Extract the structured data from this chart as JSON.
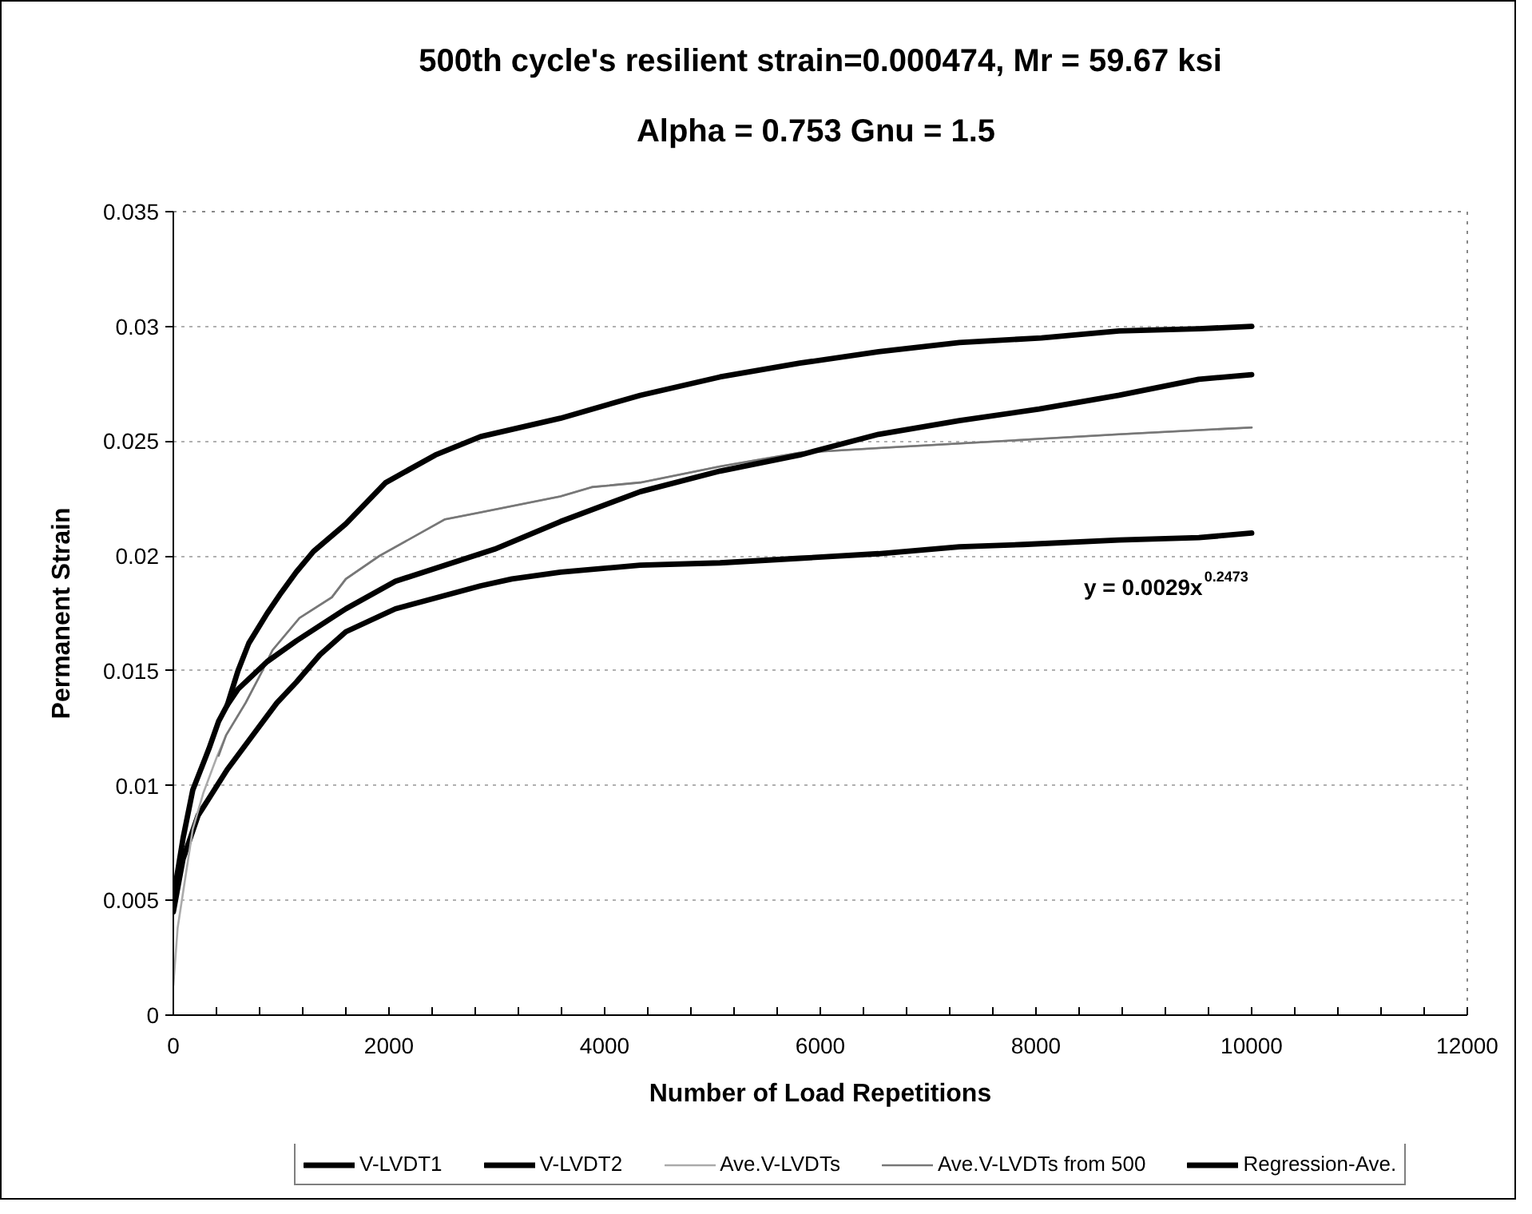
{
  "chart_data": {
    "type": "line",
    "title": "500th cycle's resilient strain=0.000474, Mr = 59.67 ksi",
    "subtitle": "Alpha = 0.753  Gnu = 1.5",
    "xlabel": "Number of Load Repetitions",
    "ylabel": "Permanent Strain",
    "xlim": [
      0,
      12000
    ],
    "ylim": [
      0,
      0.035
    ],
    "xticks": [
      0,
      {
        "value": 400,
        "label": null
      },
      {
        "value": 800,
        "label": null
      },
      {
        "value": 1200,
        "label": null
      },
      {
        "value": 1600,
        "label": null
      },
      2000,
      {
        "value": 2400,
        "label": null
      },
      {
        "value": 2800,
        "label": null
      },
      {
        "value": 3200,
        "label": null
      },
      {
        "value": 3600,
        "label": null
      },
      4000,
      {
        "value": 4400,
        "label": null
      },
      {
        "value": 4800,
        "label": null
      },
      {
        "value": 5200,
        "label": null
      },
      {
        "value": 5600,
        "label": null
      },
      6000,
      {
        "value": 6400,
        "label": null
      },
      {
        "value": 6800,
        "label": null
      },
      {
        "value": 7200,
        "label": null
      },
      {
        "value": 7600,
        "label": null
      },
      8000,
      {
        "value": 8400,
        "label": null
      },
      {
        "value": 8800,
        "label": null
      },
      {
        "value": 9200,
        "label": null
      },
      {
        "value": 9600,
        "label": null
      },
      10000,
      {
        "value": 10400,
        "label": null
      },
      {
        "value": 10800,
        "label": null
      },
      {
        "value": 11200,
        "label": null
      },
      {
        "value": 11600,
        "label": null
      },
      12000
    ],
    "yticks": [
      0,
      0.005,
      0.01,
      0.015,
      0.02,
      0.025,
      0.03,
      0.035
    ],
    "grid": "y",
    "legend": "bottom",
    "marker": "none",
    "annotations": [
      "y = 0.0029x$^{0.2473}$"
    ],
    "series": [
      {
        "name": "V-LVDT1",
        "color": "#000000",
        "x": [
          0,
          90,
          180,
          330,
          420,
          500,
          600,
          700,
          870,
          1000,
          1140,
          1300,
          1600,
          1970,
          2430,
          2850,
          3590,
          4330,
          5070,
          5810,
          6540,
          7290,
          8050,
          8770,
          9510,
          10000
        ],
        "values": [
          0.0051,
          0.0077,
          0.0098,
          0.0116,
          0.0128,
          0.0135,
          0.015,
          0.0162,
          0.0175,
          0.0184,
          0.0193,
          0.0202,
          0.0214,
          0.0232,
          0.0244,
          0.0252,
          0.026,
          0.027,
          0.0278,
          0.0284,
          0.0289,
          0.0293,
          0.0295,
          0.0298,
          0.0299,
          0.03
        ]
      },
      {
        "name": "V-LVDT2",
        "color": "#000000",
        "x": [
          0,
          90,
          230,
          500,
          770,
          960,
          1140,
          1360,
          1600,
          2060,
          2850,
          3140,
          3590,
          4330,
          5070,
          5810,
          6540,
          7290,
          7880,
          8770,
          9510,
          10000
        ],
        "values": [
          0.0045,
          0.0068,
          0.0087,
          0.0107,
          0.0124,
          0.0136,
          0.0145,
          0.0157,
          0.0167,
          0.0177,
          0.0187,
          0.019,
          0.0193,
          0.0196,
          0.0197,
          0.0199,
          0.0201,
          0.0204,
          0.0205,
          0.0207,
          0.0208,
          0.021
        ]
      },
      {
        "name": "Ave.V-LVDTs",
        "color": "#aaaaaa",
        "x": [
          0,
          40,
          180,
          280,
          400,
          490,
          670,
          815,
          920,
          1170,
          1470,
          1600,
          1910,
          2520,
          2850,
          3590,
          3880,
          4330,
          5070,
          5810,
          6540,
          7290,
          8030,
          8770,
          10000
        ],
        "values": [
          0.0013,
          0.0038,
          0.0081,
          0.0097,
          0.0112,
          0.0122,
          0.0136,
          0.0149,
          0.0159,
          0.0173,
          0.0182,
          0.019,
          0.02,
          0.0216,
          0.0219,
          0.0226,
          0.023,
          0.0232,
          0.0239,
          0.0245,
          0.0247,
          0.0249,
          0.0251,
          0.0253,
          0.0256
        ]
      },
      {
        "name": "Ave.V-LVDTs from 500",
        "color": "#777777",
        "x": [
          420,
          490,
          670,
          815,
          920,
          1170,
          1470,
          1600,
          1910,
          2520,
          2850,
          3590,
          3880,
          4330,
          5070,
          5810,
          6540,
          7290,
          8030,
          8770,
          10000
        ],
        "values": [
          0.0113,
          0.0122,
          0.0136,
          0.0149,
          0.0159,
          0.0173,
          0.0182,
          0.019,
          0.02,
          0.0216,
          0.0219,
          0.0226,
          0.023,
          0.0232,
          0.0239,
          0.0245,
          0.0247,
          0.0249,
          0.0251,
          0.0253,
          0.0256
        ]
      },
      {
        "name": "Regression-Ave.",
        "color": "#000000",
        "x": [
          500,
          600,
          870,
          1140,
          1600,
          2060,
          2980,
          3590,
          4330,
          5070,
          5810,
          6540,
          7290,
          8030,
          8770,
          9510,
          10000
        ],
        "values": [
          0.0135,
          0.0142,
          0.0154,
          0.0163,
          0.0177,
          0.0189,
          0.0203,
          0.0215,
          0.0228,
          0.0237,
          0.0244,
          0.0253,
          0.0259,
          0.0264,
          0.027,
          0.0277,
          0.0279
        ]
      }
    ]
  }
}
